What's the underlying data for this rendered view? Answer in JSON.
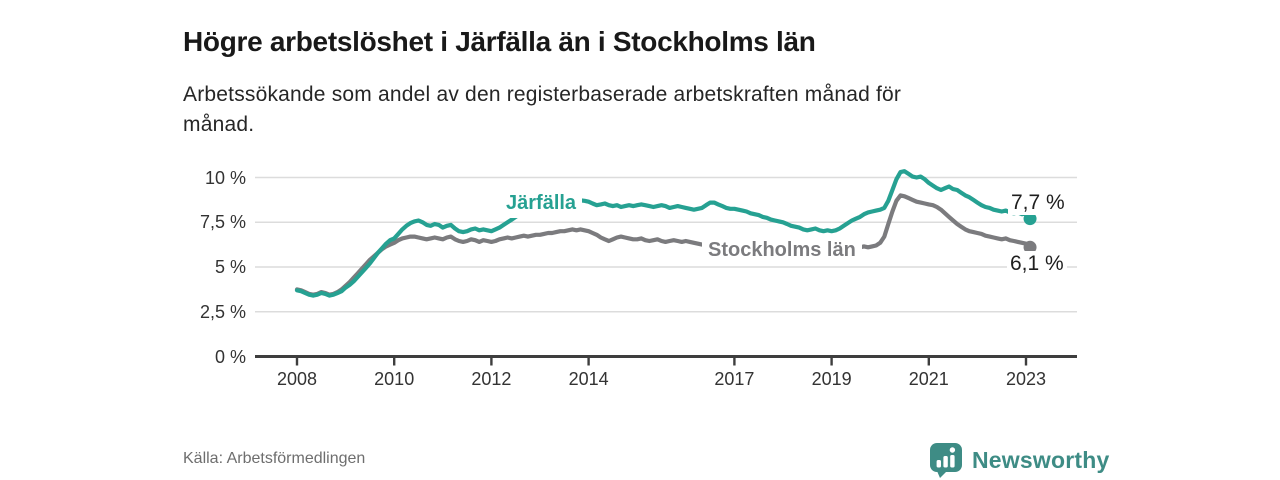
{
  "header": {
    "title": "Högre arbetslöshet i Järfälla än i Stockholms län",
    "subtitle": "Arbetssökande som andel av den registerbaserade arbetskraften månad för månad."
  },
  "footer": {
    "source": "Källa: Arbetsförmedlingen",
    "brand": "Newsworthy"
  },
  "colors": {
    "jarfalla": "#26a192",
    "stockholm": "#7b7b7e",
    "gridline": "#dcdcdc",
    "axis": "#3e3e3e",
    "brand": "#3e8c85"
  },
  "chart_data": {
    "type": "line",
    "title": "Högre arbetslöshet i Järfälla än i Stockholms län",
    "subtitle": "Arbetssökande som andel av den registerbaserade arbetskraften månad för månad.",
    "x_start_year": 2008,
    "x_interval": "monthly",
    "xlim": [
      2008,
      2023.2
    ],
    "ylim": [
      0,
      10.5
    ],
    "grid": true,
    "legend_position": "inline-labels",
    "y_ticks": [
      {
        "value": 0,
        "label": "0 %"
      },
      {
        "value": 2.5,
        "label": "2,5 %"
      },
      {
        "value": 5,
        "label": "5 %"
      },
      {
        "value": 7.5,
        "label": "7,5 %"
      },
      {
        "value": 10,
        "label": "10 %"
      }
    ],
    "x_ticks": [
      {
        "value": 2008,
        "label": "2008"
      },
      {
        "value": 2010,
        "label": "2010"
      },
      {
        "value": 2012,
        "label": "2012"
      },
      {
        "value": 2014,
        "label": "2014"
      },
      {
        "value": 2017,
        "label": "2017"
      },
      {
        "value": 2019,
        "label": "2019"
      },
      {
        "value": 2021,
        "label": "2021"
      },
      {
        "value": 2023,
        "label": "2023"
      }
    ],
    "series": [
      {
        "name": "Järfälla",
        "color": "#26a192",
        "end_label": "7,7 %",
        "end_value": 7.7,
        "values": [
          3.7,
          3.65,
          3.55,
          3.45,
          3.4,
          3.45,
          3.55,
          3.5,
          3.4,
          3.45,
          3.55,
          3.65,
          3.85,
          4.0,
          4.2,
          4.45,
          4.7,
          4.95,
          5.2,
          5.5,
          5.8,
          6.05,
          6.3,
          6.5,
          6.6,
          6.85,
          7.1,
          7.3,
          7.45,
          7.55,
          7.6,
          7.5,
          7.35,
          7.3,
          7.4,
          7.35,
          7.2,
          7.3,
          7.35,
          7.15,
          7.0,
          6.95,
          7.0,
          7.1,
          7.15,
          7.05,
          7.1,
          7.05,
          7.0,
          7.1,
          7.2,
          7.35,
          7.5,
          7.65,
          7.8,
          7.95,
          8.1,
          8.25,
          8.4,
          8.5,
          8.55,
          8.6,
          8.65,
          8.6,
          8.65,
          8.7,
          8.72,
          8.7,
          8.68,
          8.7,
          8.72,
          8.7,
          8.65,
          8.55,
          8.45,
          8.5,
          8.55,
          8.45,
          8.4,
          8.45,
          8.35,
          8.4,
          8.45,
          8.4,
          8.45,
          8.5,
          8.45,
          8.4,
          8.35,
          8.4,
          8.45,
          8.4,
          8.3,
          8.35,
          8.4,
          8.35,
          8.3,
          8.25,
          8.2,
          8.25,
          8.3,
          8.45,
          8.6,
          8.6,
          8.5,
          8.4,
          8.3,
          8.25,
          8.25,
          8.2,
          8.15,
          8.1,
          8.0,
          7.95,
          7.9,
          7.8,
          7.75,
          7.65,
          7.6,
          7.55,
          7.5,
          7.4,
          7.3,
          7.25,
          7.2,
          7.1,
          7.05,
          7.1,
          7.15,
          7.05,
          7.0,
          7.05,
          7.0,
          7.05,
          7.15,
          7.3,
          7.45,
          7.6,
          7.7,
          7.8,
          7.95,
          8.05,
          8.1,
          8.15,
          8.2,
          8.3,
          8.7,
          9.3,
          9.9,
          10.3,
          10.35,
          10.2,
          10.05,
          10.0,
          10.05,
          9.9,
          9.7,
          9.55,
          9.4,
          9.3,
          9.4,
          9.5,
          9.35,
          9.3,
          9.15,
          9.0,
          8.9,
          8.75,
          8.6,
          8.45,
          8.35,
          8.3,
          8.2,
          8.15,
          8.1,
          8.15,
          8.05,
          8.0,
          8.05,
          7.95,
          8.0,
          7.7
        ]
      },
      {
        "name": "Stockholms län",
        "color": "#7b7b7e",
        "end_label": "6,1 %",
        "end_value": 6.1,
        "values": [
          3.75,
          3.7,
          3.6,
          3.5,
          3.45,
          3.5,
          3.6,
          3.55,
          3.45,
          3.5,
          3.6,
          3.75,
          3.95,
          4.15,
          4.4,
          4.65,
          4.9,
          5.15,
          5.4,
          5.6,
          5.8,
          6.0,
          6.15,
          6.25,
          6.35,
          6.5,
          6.6,
          6.65,
          6.7,
          6.7,
          6.65,
          6.6,
          6.55,
          6.6,
          6.65,
          6.6,
          6.55,
          6.65,
          6.7,
          6.55,
          6.45,
          6.4,
          6.45,
          6.55,
          6.5,
          6.4,
          6.5,
          6.45,
          6.4,
          6.45,
          6.55,
          6.6,
          6.65,
          6.6,
          6.65,
          6.7,
          6.75,
          6.7,
          6.75,
          6.8,
          6.8,
          6.85,
          6.9,
          6.9,
          6.95,
          7.0,
          7.0,
          7.05,
          7.1,
          7.05,
          7.1,
          7.05,
          7.0,
          6.9,
          6.8,
          6.65,
          6.55,
          6.45,
          6.55,
          6.65,
          6.7,
          6.65,
          6.6,
          6.55,
          6.55,
          6.6,
          6.5,
          6.45,
          6.5,
          6.55,
          6.45,
          6.4,
          6.45,
          6.5,
          6.45,
          6.4,
          6.45,
          6.4,
          6.35,
          6.3,
          6.25,
          6.2,
          6.15,
          6.2,
          6.15,
          6.1,
          6.15,
          6.1,
          6.05,
          6.1,
          6.05,
          6.0,
          5.95,
          6.0,
          6.05,
          6.0,
          5.95,
          6.0,
          6.05,
          6.0,
          5.95,
          6.0,
          6.05,
          6.0,
          5.95,
          6.0,
          6.05,
          6.1,
          6.05,
          6.0,
          6.05,
          6.1,
          6.05,
          6.1,
          6.15,
          6.1,
          6.05,
          6.1,
          6.15,
          6.1,
          6.15,
          6.1,
          6.15,
          6.2,
          6.35,
          6.7,
          7.4,
          8.1,
          8.7,
          9.0,
          8.95,
          8.85,
          8.75,
          8.65,
          8.6,
          8.55,
          8.5,
          8.45,
          8.35,
          8.2,
          8.0,
          7.8,
          7.6,
          7.4,
          7.25,
          7.1,
          7.0,
          6.95,
          6.9,
          6.85,
          6.75,
          6.7,
          6.65,
          6.6,
          6.55,
          6.6,
          6.5,
          6.45,
          6.4,
          6.35,
          6.3,
          6.1
        ]
      }
    ]
  }
}
